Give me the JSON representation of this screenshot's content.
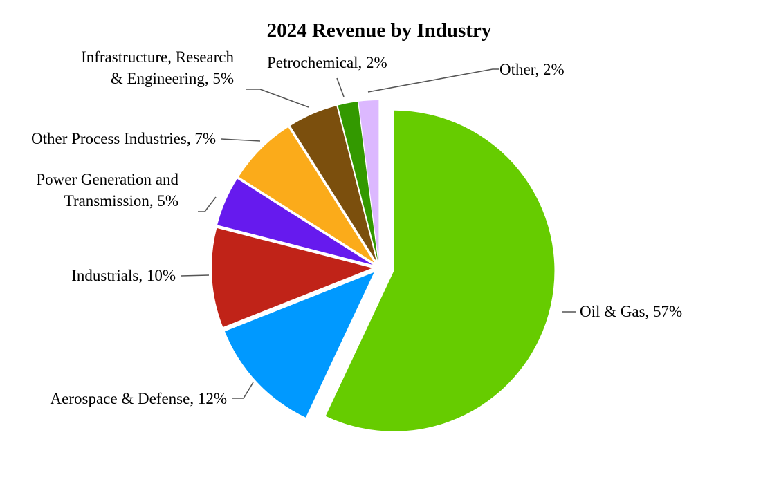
{
  "chart_data": {
    "type": "pie",
    "title": "2024 Revenue by Industry",
    "slices": [
      {
        "name": "Oil & Gas",
        "value": 57,
        "label": [
          "Oil & Gas, 57%"
        ],
        "color": "#66cc00"
      },
      {
        "name": "Aerospace & Defense",
        "value": 12,
        "label": [
          "Aerospace & Defense, 12%"
        ],
        "color": "#0099ff"
      },
      {
        "name": "Industrials",
        "value": 10,
        "label": [
          "Industrials, 10%"
        ],
        "color": "#c02318"
      },
      {
        "name": "Power Generation and Transmission",
        "value": 5,
        "label": [
          "Power Generation and",
          "Transmission, 5%"
        ],
        "color": "#661aee"
      },
      {
        "name": "Other Process Industries",
        "value": 7,
        "label": [
          "Other Process Industries, 7%"
        ],
        "color": "#fbab1a"
      },
      {
        "name": "Infrastructure, Research & Engineering",
        "value": 5,
        "label": [
          "Infrastructure, Research",
          "& Engineering, 5%"
        ],
        "color": "#7b4f0d"
      },
      {
        "name": "Petrochemical",
        "value": 2,
        "label": [
          "Petrochemical, 2%"
        ],
        "color": "#339900"
      },
      {
        "name": "Other",
        "value": 2,
        "label": [
          "Other, 2%"
        ],
        "color": "#dcb8ff"
      }
    ],
    "start_angle": "12 o'clock",
    "direction": "clockwise",
    "exploded": true,
    "legend": "none"
  }
}
